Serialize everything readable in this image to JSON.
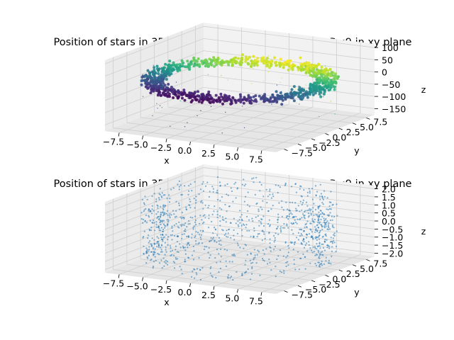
{
  "chart_data": [
    {
      "type": "scatter3d",
      "title": "Position of stars in 3D within the cylindrical radius 7<R<9 in xy plane",
      "xlabel": "x",
      "ylabel": "y",
      "zlabel": "z",
      "xticks": [
        "−7.5",
        "−5.0",
        "−2.5",
        "0.0",
        "2.5",
        "5.0",
        "7.5"
      ],
      "yticks": [
        "−7.5",
        "−5.0",
        "−2.5",
        "0.0",
        "2.5",
        "5.0",
        "7.5"
      ],
      "zticks": [
        "100",
        "50",
        "0",
        "−50",
        "−100",
        "−150"
      ],
      "xlim": [
        -9,
        9
      ],
      "ylim": [
        -9,
        9
      ],
      "zlim": [
        -175,
        115
      ],
      "r_range": [
        7,
        9
      ],
      "z_core_sigma": 8,
      "z_outliers": [
        -155,
        60
      ],
      "colormap": "viridis",
      "color_by": "y",
      "grid": true
    },
    {
      "type": "scatter3d",
      "title": "Position of stars in 3D within the cylindrical radius 7<R<9 in xy plane",
      "xlabel": "x",
      "ylabel": "y",
      "zlabel": "z",
      "xticks": [
        "−7.5",
        "−5.0",
        "−2.5",
        "0.0",
        "2.5",
        "5.0",
        "7.5"
      ],
      "yticks": [
        "−7.5",
        "−5.0",
        "−2.5",
        "0.0",
        "2.5",
        "5.0",
        "7.5"
      ],
      "zticks": [
        "2.0",
        "1.5",
        "1.0",
        "0.5",
        "0.0",
        "−0.5",
        "−1.0",
        "−1.5",
        "−2.0"
      ],
      "xlim": [
        -9,
        9
      ],
      "ylim": [
        -9,
        9
      ],
      "zlim": [
        -2.2,
        2.2
      ],
      "r_range": [
        7,
        9
      ],
      "z_uniform": [
        -2,
        2
      ],
      "color": "#1f77b4",
      "grid": true
    }
  ]
}
